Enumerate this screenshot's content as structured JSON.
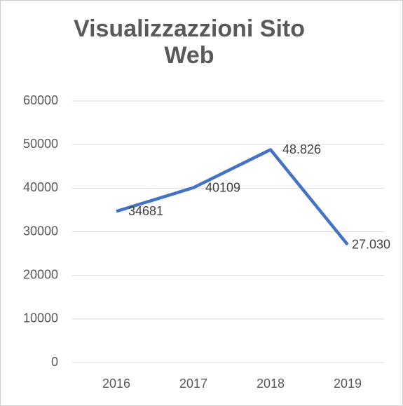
{
  "chart_data": {
    "type": "line",
    "title": "Visualizzazzioni Sito Web",
    "categories": [
      "2016",
      "2017",
      "2018",
      "2019"
    ],
    "series": [
      {
        "color": "#4472c4",
        "values": [
          34681,
          40109,
          48826,
          27030
        ],
        "value_labels": [
          "34681",
          "40109",
          "48.826",
          "27.030"
        ]
      }
    ],
    "ylim": [
      0,
      60000
    ],
    "yticks": [
      0,
      10000,
      20000,
      30000,
      40000,
      50000,
      60000
    ],
    "grid": true
  }
}
